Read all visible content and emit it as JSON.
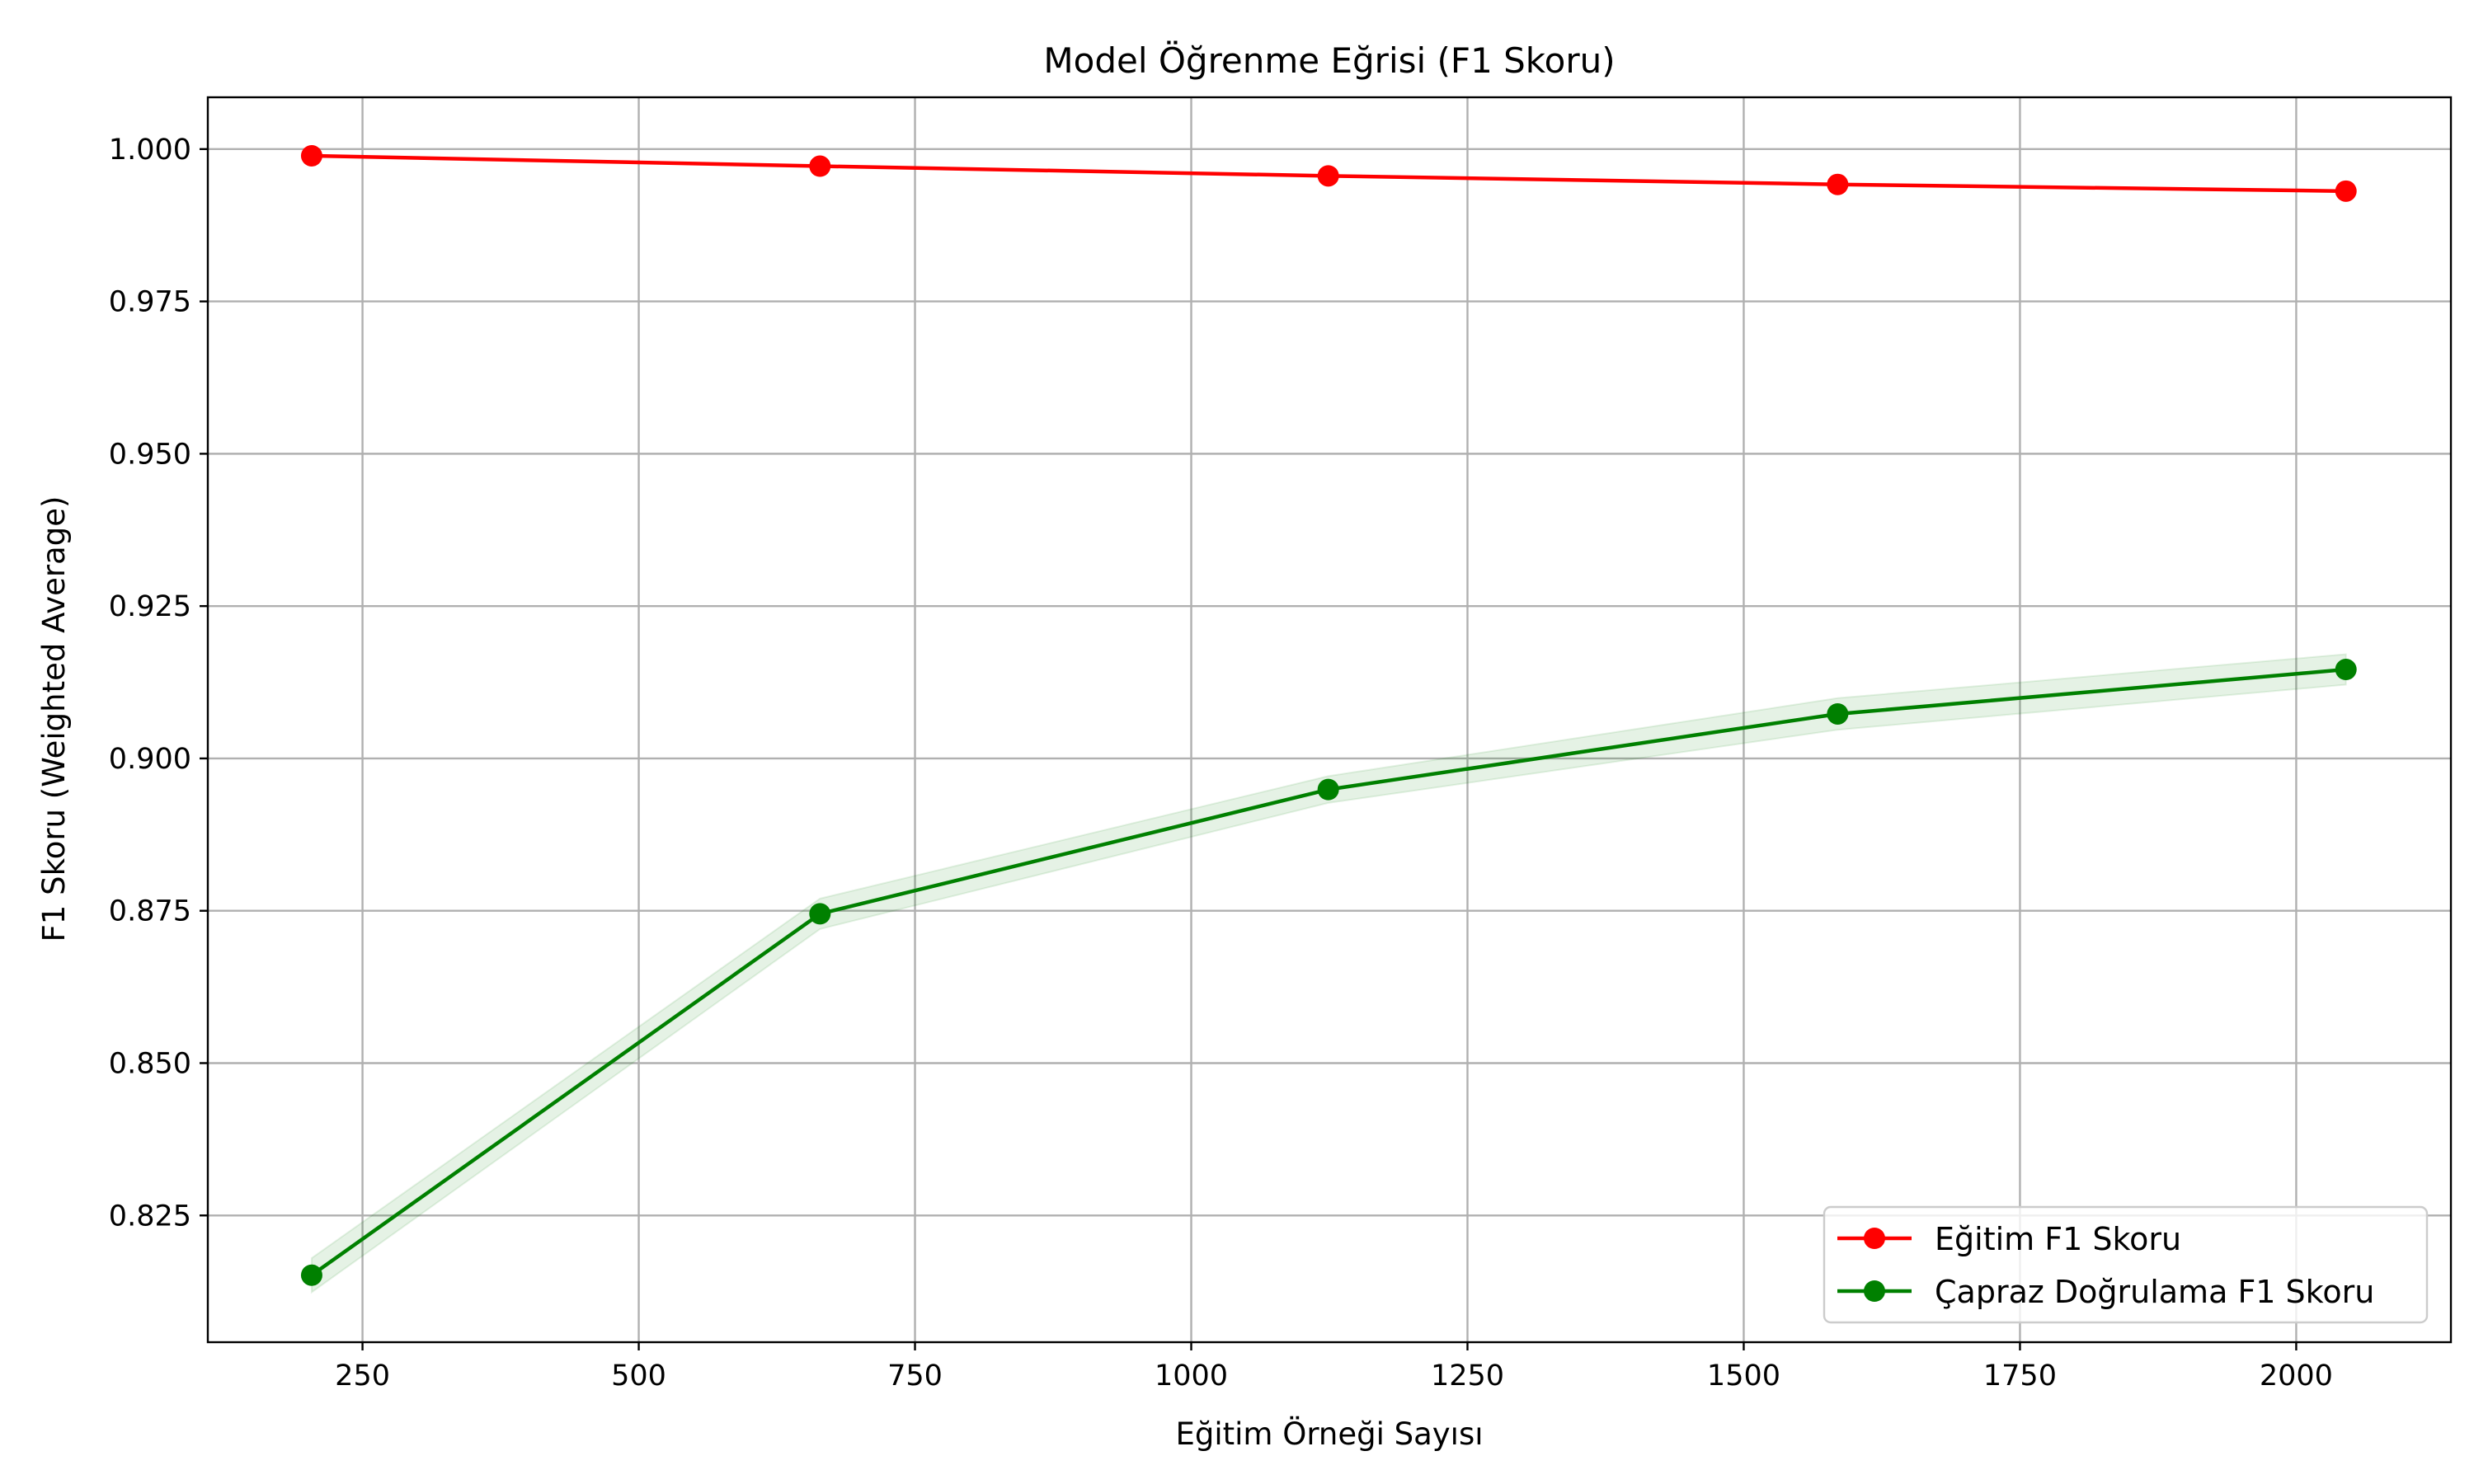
{
  "chart_data": {
    "type": "line",
    "title": "Model Öğrenme Eğrisi (F1 Skoru)",
    "xlabel": "Eğitim Örneği Sayısı",
    "ylabel": "F1 Skoru (Weighted Average)",
    "x": [
      204,
      664,
      1124,
      1585,
      2045
    ],
    "xlim": [
      110,
      2140
    ],
    "ylim": [
      0.8042,
      1.0085
    ],
    "xticks": [
      250,
      500,
      750,
      1000,
      1250,
      1500,
      1750,
      2000
    ],
    "yticks": [
      0.825,
      0.85,
      0.875,
      0.9,
      0.925,
      0.95,
      0.975,
      1.0
    ],
    "xtick_labels": [
      "250",
      "500",
      "750",
      "1000",
      "1250",
      "1500",
      "1750",
      "2000"
    ],
    "ytick_labels": [
      "0.825",
      "0.850",
      "0.875",
      "0.900",
      "0.925",
      "0.950",
      "0.975",
      "1.000"
    ],
    "grid": true,
    "legend_position": "lower-right",
    "series": [
      {
        "name": "Eğitim F1 Skoru",
        "color": "#ff0000",
        "values": [
          0.9989,
          0.9972,
          0.9956,
          0.9942,
          0.9931
        ]
      },
      {
        "name": "Çapraz Doğrulama F1 Skoru",
        "color": "#008000",
        "band_color": "#008000",
        "values": [
          0.8152,
          0.8745,
          0.8949,
          0.9073,
          0.9146
        ],
        "std": [
          0.0028,
          0.0025,
          0.0022,
          0.0026,
          0.0025
        ]
      }
    ]
  }
}
